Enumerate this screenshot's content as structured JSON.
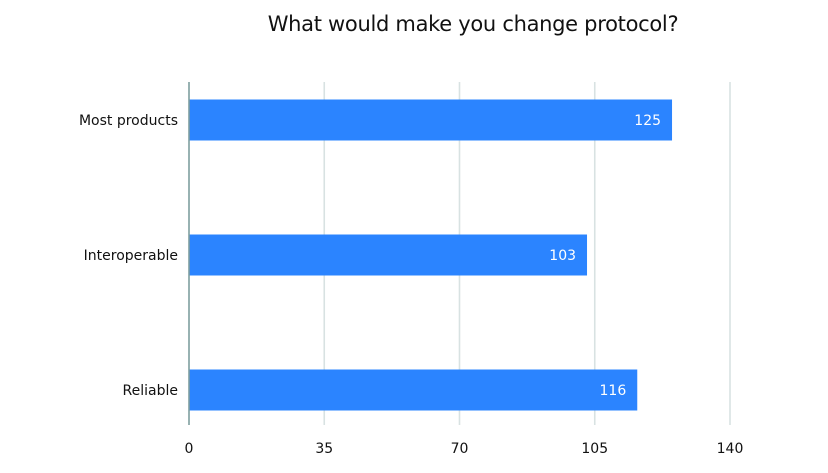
{
  "chart_data": {
    "type": "bar",
    "orientation": "horizontal",
    "title": "What would make you change protocol?",
    "categories": [
      "Most products",
      "Interoperable",
      "Reliable"
    ],
    "values": [
      125,
      103,
      116
    ],
    "data_labels": [
      "125",
      "103",
      "116"
    ],
    "xlim": [
      0,
      140
    ],
    "x_ticks": [
      0,
      35,
      70,
      105,
      140
    ],
    "x_tick_labels": [
      "0",
      "35",
      "70",
      "105",
      "140"
    ],
    "grid": true,
    "legend": "none",
    "colors": {
      "bar": "#2b84ff",
      "grid": "#d8e2e2",
      "axis": "#7f9e9e",
      "bar_label": "#ffffff"
    }
  }
}
